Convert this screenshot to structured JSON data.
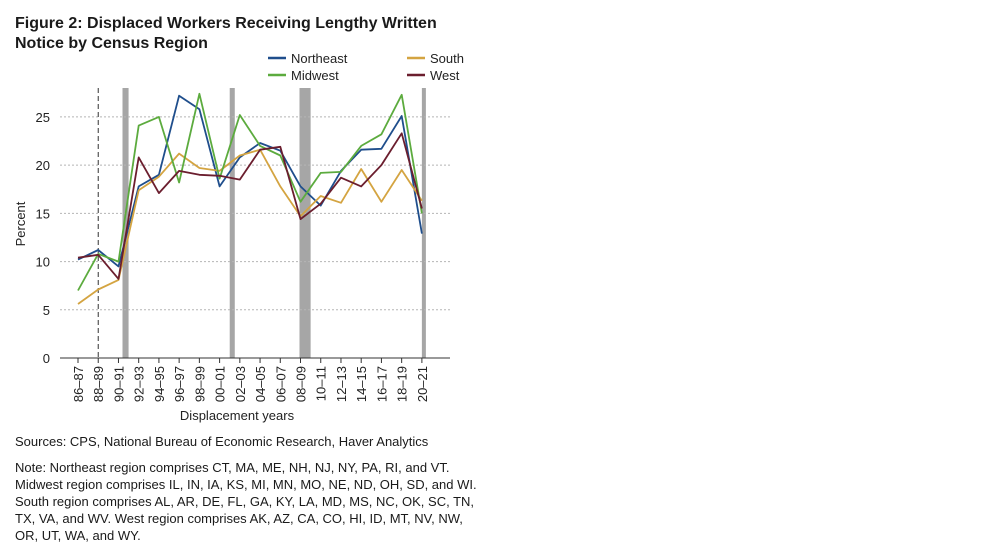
{
  "figure": {
    "title": "Figure 2: Displaced Workers Receiving Lengthy Written Notice by Census Region",
    "sources": "Sources: CPS, National Bureau of Economic Research, Haver Analytics",
    "note": "Note: Northeast region comprises CT, MA, ME, NH, NJ, NY, PA, RI, and VT. Midwest region comprises IL, IN, IA, KS, MI, MN, MO, NE, ND, OH, SD, and WI. South region comprises AL, AR, DE, FL, GA, KY, LA, MD, MS, NC, OK, SC, TN, TX, VA, and WV. West region comprises AK, AZ, CA, CO, HI, ID, MT, NV, NW, OR, UT, WA, and WY."
  },
  "chart_data": {
    "type": "line",
    "title": "Figure 2: Displaced Workers Receiving Lengthy Written Notice by Census Region",
    "xlabel": "Displacement years",
    "ylabel": "Percent",
    "ylim": [
      0,
      28
    ],
    "yticks": [
      0,
      5,
      10,
      15,
      20,
      25
    ],
    "grid": true,
    "legend": "top",
    "categories": [
      "86–87",
      "88–89",
      "90–91",
      "92–93",
      "94–95",
      "96–97",
      "98–99",
      "00–01",
      "02–03",
      "04–05",
      "06–07",
      "08–09",
      "10–11",
      "12–13",
      "14–15",
      "16–17",
      "18–19",
      "20–21"
    ],
    "x": [
      1986,
      1987,
      1988,
      1989,
      1990,
      1991,
      1992,
      1993,
      1994,
      1995,
      1996,
      1997,
      1998,
      1999,
      2000,
      2001,
      2002,
      2003,
      2004,
      2005,
      2006,
      2007,
      2008,
      2009,
      2010,
      2011,
      2012,
      2013,
      2014,
      2015,
      2016,
      2017,
      2018,
      2019,
      2020,
      2021
    ],
    "series": [
      {
        "name": "Northeast",
        "color": "#1f4e8c",
        "values": [
          10.2,
          null,
          11.2,
          null,
          9.5,
          null,
          17.8,
          null,
          19.0,
          null,
          27.2,
          null,
          25.8,
          null,
          17.8,
          null,
          20.8,
          null,
          22.3,
          null,
          21.5,
          null,
          17.8,
          null,
          15.8,
          null,
          19.4,
          null,
          21.6,
          null,
          21.7,
          null,
          25.1,
          null,
          12.9,
          null
        ]
      },
      {
        "name": "South",
        "color": "#d4a441",
        "values": [
          5.6,
          null,
          7.1,
          null,
          8.1,
          null,
          17.4,
          null,
          18.8,
          null,
          21.2,
          null,
          19.7,
          null,
          19.4,
          null,
          21.0,
          null,
          21.6,
          null,
          17.8,
          null,
          14.7,
          null,
          16.8,
          null,
          16.1,
          null,
          19.6,
          null,
          16.2,
          null,
          19.5,
          null,
          16.3,
          null
        ]
      },
      {
        "name": "Midwest",
        "color": "#5cab3e",
        "values": [
          7.0,
          null,
          10.8,
          null,
          10.0,
          null,
          24.1,
          null,
          25.0,
          null,
          18.2,
          null,
          27.4,
          null,
          18.6,
          null,
          25.2,
          null,
          22.0,
          null,
          21.0,
          null,
          16.2,
          null,
          19.2,
          null,
          19.3,
          null,
          22.0,
          null,
          23.2,
          null,
          27.3,
          null,
          15.0,
          null
        ]
      },
      {
        "name": "West",
        "color": "#6b1e2e",
        "values": [
          10.4,
          null,
          10.7,
          null,
          8.2,
          null,
          20.8,
          null,
          17.1,
          null,
          19.4,
          null,
          19.0,
          null,
          18.9,
          null,
          18.5,
          null,
          21.6,
          null,
          21.9,
          null,
          14.4,
          null,
          16.0,
          null,
          18.7,
          null,
          17.8,
          null,
          20.0,
          null,
          23.3,
          null,
          15.5,
          null
        ]
      }
    ],
    "recessions": [
      [
        1990.4,
        1991.0
      ],
      [
        2001.0,
        2001.5
      ],
      [
        2007.9,
        2009.0
      ],
      [
        2020.0,
        2020.3
      ]
    ],
    "dashed_marker_x": 1988.0
  }
}
